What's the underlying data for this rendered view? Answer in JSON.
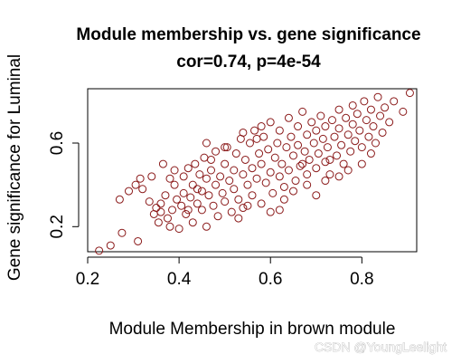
{
  "chart_data": {
    "type": "scatter",
    "title": "Module membership vs. gene significance",
    "subtitle": "cor=0.74, p=4e-54",
    "xlabel": "Module Membership in brown module",
    "ylabel": "Gene significance for Luminal",
    "xlim": [
      0.2,
      0.92
    ],
    "ylim": [
      0.08,
      0.86
    ],
    "xticks": [
      "0.2",
      "0.4",
      "0.6",
      "0.8"
    ],
    "yticks": [
      "0.2",
      "0.6"
    ],
    "xtick_values": [
      0.2,
      0.4,
      0.6,
      0.8
    ],
    "ytick_values": [
      0.2,
      0.6
    ],
    "point_color": "#8b1a1a",
    "grid": false,
    "legend": "none",
    "points": [
      [
        0.225,
        0.085
      ],
      [
        0.25,
        0.11
      ],
      [
        0.275,
        0.17
      ],
      [
        0.31,
        0.13
      ],
      [
        0.27,
        0.33
      ],
      [
        0.29,
        0.37
      ],
      [
        0.305,
        0.4
      ],
      [
        0.315,
        0.43
      ],
      [
        0.32,
        0.38
      ],
      [
        0.335,
        0.32
      ],
      [
        0.34,
        0.44
      ],
      [
        0.345,
        0.26
      ],
      [
        0.35,
        0.29
      ],
      [
        0.355,
        0.22
      ],
      [
        0.36,
        0.27
      ],
      [
        0.36,
        0.31
      ],
      [
        0.365,
        0.5
      ],
      [
        0.37,
        0.35
      ],
      [
        0.375,
        0.24
      ],
      [
        0.38,
        0.2
      ],
      [
        0.385,
        0.28
      ],
      [
        0.39,
        0.47
      ],
      [
        0.39,
        0.4
      ],
      [
        0.395,
        0.33
      ],
      [
        0.4,
        0.19
      ],
      [
        0.405,
        0.3
      ],
      [
        0.41,
        0.36
      ],
      [
        0.41,
        0.44
      ],
      [
        0.415,
        0.26
      ],
      [
        0.42,
        0.48
      ],
      [
        0.425,
        0.34
      ],
      [
        0.43,
        0.4
      ],
      [
        0.43,
        0.22
      ],
      [
        0.435,
        0.5
      ],
      [
        0.44,
        0.31
      ],
      [
        0.445,
        0.45
      ],
      [
        0.45,
        0.37
      ],
      [
        0.45,
        0.28
      ],
      [
        0.455,
        0.53
      ],
      [
        0.46,
        0.43
      ],
      [
        0.46,
        0.2
      ],
      [
        0.465,
        0.35
      ],
      [
        0.47,
        0.47
      ],
      [
        0.475,
        0.3
      ],
      [
        0.48,
        0.56
      ],
      [
        0.48,
        0.4
      ],
      [
        0.485,
        0.25
      ],
      [
        0.49,
        0.44
      ],
      [
        0.495,
        0.36
      ],
      [
        0.5,
        0.5
      ],
      [
        0.5,
        0.32
      ],
      [
        0.505,
        0.58
      ],
      [
        0.51,
        0.42
      ],
      [
        0.515,
        0.27
      ],
      [
        0.52,
        0.47
      ],
      [
        0.52,
        0.38
      ],
      [
        0.525,
        0.55
      ],
      [
        0.53,
        0.33
      ],
      [
        0.535,
        0.62
      ],
      [
        0.54,
        0.45
      ],
      [
        0.54,
        0.29
      ],
      [
        0.545,
        0.52
      ],
      [
        0.55,
        0.4
      ],
      [
        0.555,
        0.6
      ],
      [
        0.56,
        0.48
      ],
      [
        0.56,
        0.35
      ],
      [
        0.565,
        0.66
      ],
      [
        0.57,
        0.43
      ],
      [
        0.575,
        0.55
      ],
      [
        0.58,
        0.31
      ],
      [
        0.58,
        0.5
      ],
      [
        0.585,
        0.63
      ],
      [
        0.59,
        0.41
      ],
      [
        0.595,
        0.57
      ],
      [
        0.6,
        0.46
      ],
      [
        0.6,
        0.7
      ],
      [
        0.605,
        0.36
      ],
      [
        0.61,
        0.53
      ],
      [
        0.615,
        0.6
      ],
      [
        0.62,
        0.44
      ],
      [
        0.62,
        0.66
      ],
      [
        0.625,
        0.5
      ],
      [
        0.63,
        0.39
      ],
      [
        0.635,
        0.58
      ],
      [
        0.64,
        0.72
      ],
      [
        0.64,
        0.47
      ],
      [
        0.645,
        0.63
      ],
      [
        0.65,
        0.54
      ],
      [
        0.655,
        0.42
      ],
      [
        0.66,
        0.68
      ],
      [
        0.66,
        0.59
      ],
      [
        0.665,
        0.49
      ],
      [
        0.67,
        0.75
      ],
      [
        0.675,
        0.56
      ],
      [
        0.68,
        0.45
      ],
      [
        0.68,
        0.64
      ],
      [
        0.685,
        0.52
      ],
      [
        0.69,
        0.7
      ],
      [
        0.695,
        0.6
      ],
      [
        0.7,
        0.48
      ],
      [
        0.7,
        0.66
      ],
      [
        0.705,
        0.55
      ],
      [
        0.71,
        0.73
      ],
      [
        0.715,
        0.62
      ],
      [
        0.72,
        0.51
      ],
      [
        0.72,
        0.68
      ],
      [
        0.725,
        0.58
      ],
      [
        0.73,
        0.45
      ],
      [
        0.735,
        0.71
      ],
      [
        0.74,
        0.63
      ],
      [
        0.745,
        0.54
      ],
      [
        0.75,
        0.76
      ],
      [
        0.75,
        0.67
      ],
      [
        0.755,
        0.59
      ],
      [
        0.76,
        0.5
      ],
      [
        0.765,
        0.72
      ],
      [
        0.77,
        0.64
      ],
      [
        0.775,
        0.56
      ],
      [
        0.78,
        0.78
      ],
      [
        0.78,
        0.69
      ],
      [
        0.785,
        0.61
      ],
      [
        0.79,
        0.74
      ],
      [
        0.795,
        0.66
      ],
      [
        0.8,
        0.58
      ],
      [
        0.805,
        0.8
      ],
      [
        0.81,
        0.71
      ],
      [
        0.815,
        0.63
      ],
      [
        0.82,
        0.76
      ],
      [
        0.825,
        0.68
      ],
      [
        0.83,
        0.6
      ],
      [
        0.835,
        0.82
      ],
      [
        0.84,
        0.73
      ],
      [
        0.845,
        0.65
      ],
      [
        0.85,
        0.77
      ],
      [
        0.86,
        0.7
      ],
      [
        0.87,
        0.8
      ],
      [
        0.89,
        0.75
      ],
      [
        0.905,
        0.84
      ],
      [
        0.38,
        0.43
      ],
      [
        0.42,
        0.28
      ],
      [
        0.47,
        0.52
      ],
      [
        0.53,
        0.24
      ],
      [
        0.57,
        0.62
      ],
      [
        0.63,
        0.33
      ],
      [
        0.67,
        0.5
      ],
      [
        0.72,
        0.42
      ],
      [
        0.77,
        0.47
      ],
      [
        0.82,
        0.55
      ],
      [
        0.6,
        0.27
      ],
      [
        0.5,
        0.58
      ],
      [
        0.55,
        0.3
      ],
      [
        0.65,
        0.37
      ],
      [
        0.7,
        0.35
      ],
      [
        0.75,
        0.44
      ],
      [
        0.8,
        0.5
      ],
      [
        0.46,
        0.6
      ],
      [
        0.54,
        0.65
      ],
      [
        0.58,
        0.68
      ],
      [
        0.44,
        0.38
      ],
      [
        0.62,
        0.28
      ],
      [
        0.68,
        0.4
      ],
      [
        0.73,
        0.52
      ]
    ]
  },
  "watermark": "CSDN @YoungLeelight"
}
